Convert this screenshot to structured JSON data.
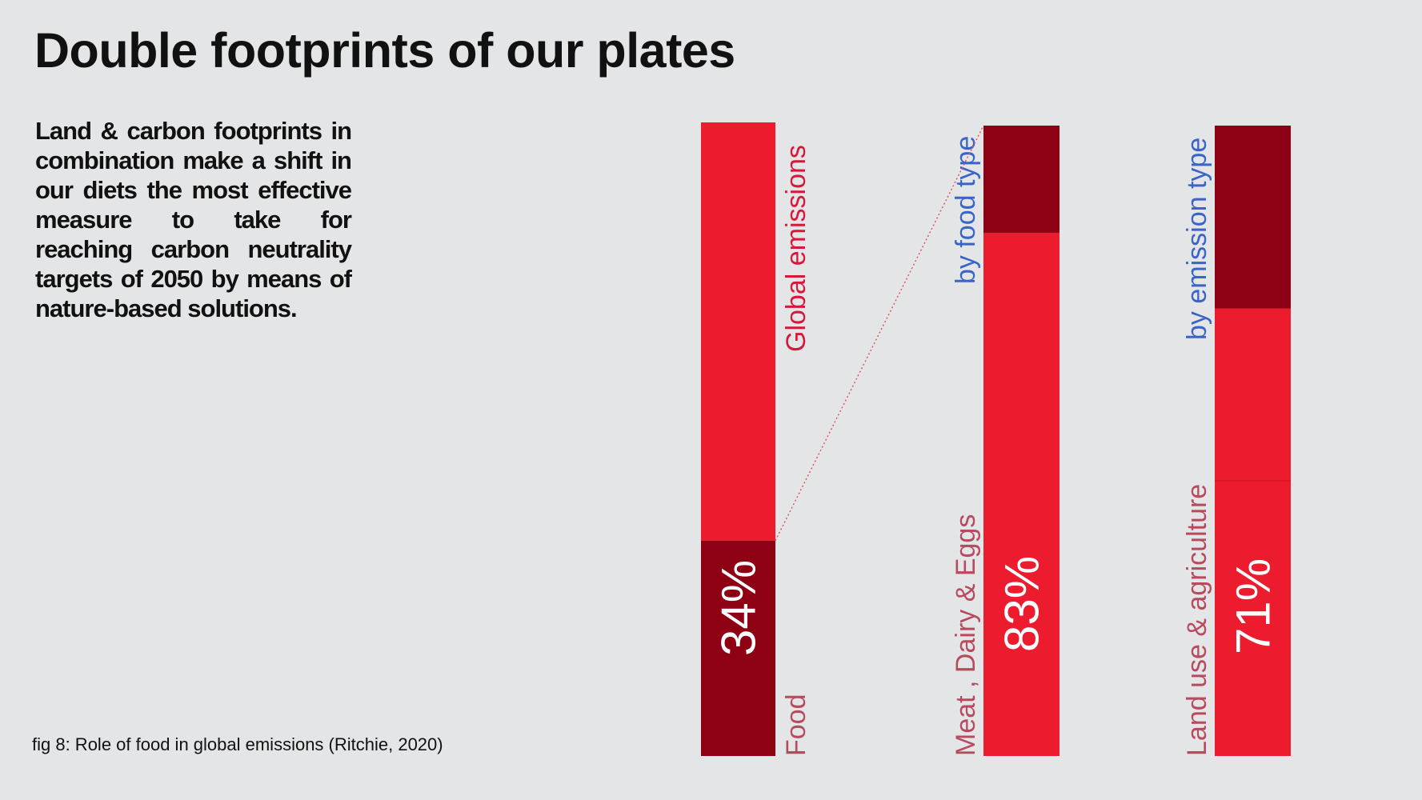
{
  "page": {
    "title": "Double footprints of our plates",
    "intro": "Land & carbon footprints in combination make a shift in our diets the most effective measure to take for reaching carbon neutrality targets of 2050 by means of nature-based solutions.",
    "caption": "fig 8: Role of food in global emissions (Ritchie, 2020)"
  },
  "colors": {
    "background": "#e4e5e6",
    "bright_red": "#ec1c2e",
    "dark_red": "#8e0013",
    "label_red": "#d7183a",
    "label_muted": "#b84a5f",
    "label_blue": "#3a64c8",
    "connector": "#e2555f"
  },
  "chart_data": {
    "type": "bar",
    "stacked": true,
    "unit": "%",
    "bars": [
      {
        "top_label": "Global emissions",
        "bottom_label": "Food",
        "highlight_value": 34,
        "value_text": "34%"
      },
      {
        "top_label": "by food type",
        "bottom_label": "Meat , Dairy & Eggs",
        "highlight_value": 83,
        "value_text": "83%"
      },
      {
        "top_label": "by emission type",
        "bottom_label": "Land use & agriculture",
        "highlight_value": 71,
        "value_text": "71%"
      }
    ]
  }
}
